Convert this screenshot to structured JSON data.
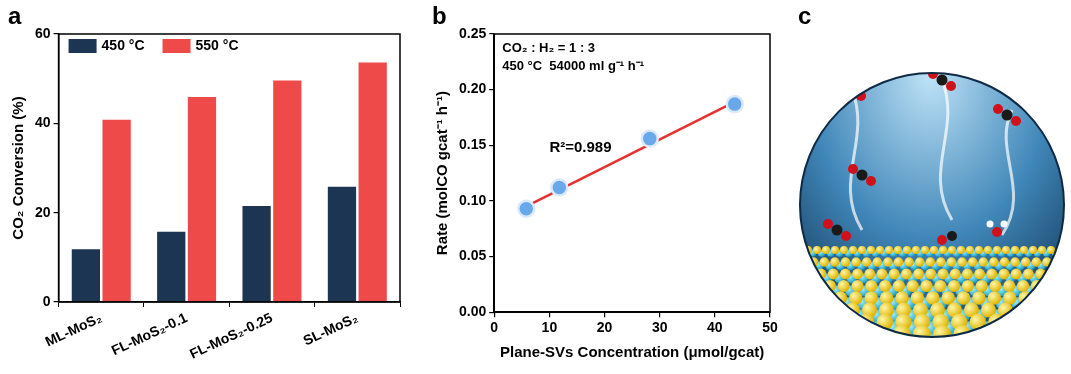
{
  "chart_data": [
    {
      "type": "bar",
      "panel": "a",
      "categories": [
        "ML-MoS₂",
        "FL-MoS₂-0.1",
        "FL-MoS₂-0.25",
        "SL-MoS₂"
      ],
      "series": [
        {
          "name": "450 °C",
          "color": "#1c3553",
          "values": [
            11.8,
            15.7,
            21.5,
            25.8
          ]
        },
        {
          "name": "550 °C",
          "color": "#ef4a4a",
          "values": [
            40.8,
            45.9,
            49.6,
            53.6
          ]
        }
      ],
      "y_label": "CO₂ Conversion (%)",
      "ylim": [
        0,
        60
      ],
      "yticks": [
        0,
        20,
        40,
        60
      ],
      "grid": false,
      "legend": "upper left"
    },
    {
      "type": "scatter",
      "panel": "b",
      "annotations": [
        "CO₂ : H₂ = 1 : 3",
        "450 °C  54000 ml g⁻¹ h⁻¹",
        "R²=0.989"
      ],
      "series": [
        {
          "type": "scatter",
          "color": "#6aa8ec",
          "marker": "circle",
          "x": [
            5.8,
            11.8,
            28.2,
            43.6
          ],
          "values": [
            0.093,
            0.112,
            0.156,
            0.187
          ]
        },
        {
          "type": "line",
          "color": "#e5312f",
          "line_style": "solid",
          "x": [
            5.8,
            43.6
          ],
          "values": [
            0.095,
            0.189
          ]
        }
      ],
      "x_label": "Plane-SVs Concentration (μmol/gcat)",
      "y_label": "Rate (molCO gcat⁻¹ h⁻¹)",
      "xlim": [
        0,
        50
      ],
      "xticks": [
        0,
        10,
        20,
        30,
        40,
        50
      ],
      "ylim": [
        0,
        0.25
      ],
      "yticks": [
        {
          "value": 0,
          "label": "0.00"
        },
        {
          "value": 0.05,
          "label": "0.05"
        },
        {
          "value": 0.1,
          "label": "0.10"
        },
        {
          "value": 0.15,
          "label": "0.15"
        },
        {
          "value": 0.2,
          "label": "0.20"
        },
        {
          "value": 0.25,
          "label": "0.25"
        }
      ],
      "grid": false
    }
  ],
  "illustration": {
    "panel": "c"
  }
}
